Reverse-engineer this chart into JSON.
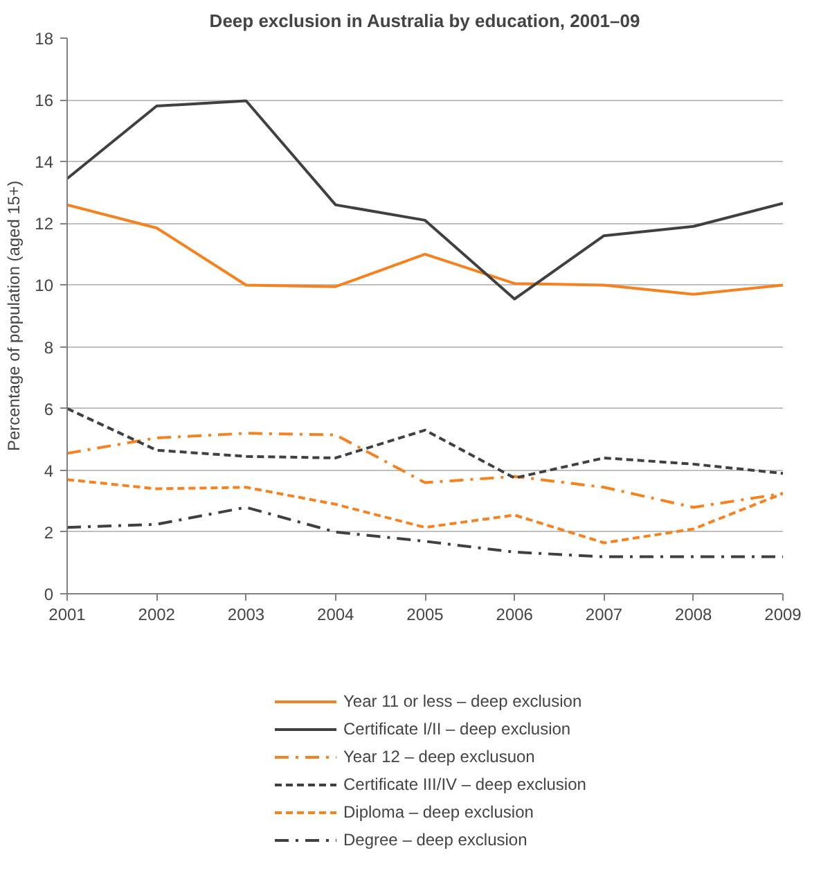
{
  "chart_data": {
    "type": "line",
    "title": "Deep exclusion in Australia by education, 2001–09",
    "ylabel": "Percentage of population (aged 15+)",
    "x": [
      2001,
      2002,
      2003,
      2004,
      2005,
      2006,
      2007,
      2008,
      2009
    ],
    "xlim": [
      2001,
      2009
    ],
    "xticks": [
      2001,
      2002,
      2003,
      2004,
      2005,
      2006,
      2007,
      2008,
      2009
    ],
    "ylim": [
      0,
      18
    ],
    "yticks": [
      0,
      2,
      4,
      6,
      8,
      10,
      12,
      14,
      16,
      18
    ],
    "grid": "y",
    "legend": "bottom",
    "series": [
      {
        "name": "Year 11 or less – deep exclusion",
        "color": "#f58220",
        "line_style": "solid",
        "values": [
          12.6,
          11.85,
          10.0,
          9.95,
          11.0,
          10.05,
          10.0,
          9.7,
          10.0
        ]
      },
      {
        "name": "Certificate I/II – deep exclusion",
        "color": "#404040",
        "line_style": "solid",
        "values": [
          13.45,
          15.8,
          15.97,
          12.6,
          12.1,
          9.55,
          11.6,
          11.9,
          12.65
        ]
      },
      {
        "name": "Year 12 – deep exclusuon",
        "color": "#f58220",
        "line_style": "dashdot",
        "values": [
          4.55,
          5.05,
          5.2,
          5.15,
          3.6,
          3.8,
          3.45,
          2.8,
          3.25
        ]
      },
      {
        "name": "Certificate III/IV – deep exclusion",
        "color": "#404040",
        "line_style": "dashed",
        "values": [
          6.0,
          4.65,
          4.45,
          4.4,
          5.3,
          3.75,
          4.4,
          4.2,
          3.9
        ]
      },
      {
        "name": "Diploma – deep exclusion",
        "color": "#f58220",
        "line_style": "dashed",
        "values": [
          3.7,
          3.4,
          3.45,
          2.9,
          2.15,
          2.55,
          1.65,
          2.1,
          3.25
        ]
      },
      {
        "name": "Degree – deep exclusion",
        "color": "#404040",
        "line_style": "dashdot",
        "values": [
          2.15,
          2.25,
          2.8,
          2.0,
          1.7,
          1.35,
          1.2,
          1.2,
          1.2
        ]
      }
    ]
  }
}
